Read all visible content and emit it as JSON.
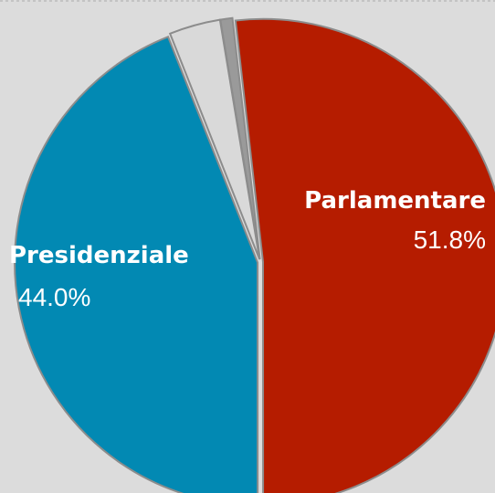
{
  "chart_data": {
    "type": "pie",
    "categories": [
      "Parlamentare",
      "Presidenziale",
      null,
      null
    ],
    "values": [
      51.8,
      44.0,
      3.4,
      0.8
    ],
    "value_labels": [
      "51.8%",
      "44.0%",
      null,
      null
    ],
    "colors": [
      "#b51c00",
      "#0289b3",
      "#d9d9d9",
      "#9a9a9a"
    ]
  }
}
